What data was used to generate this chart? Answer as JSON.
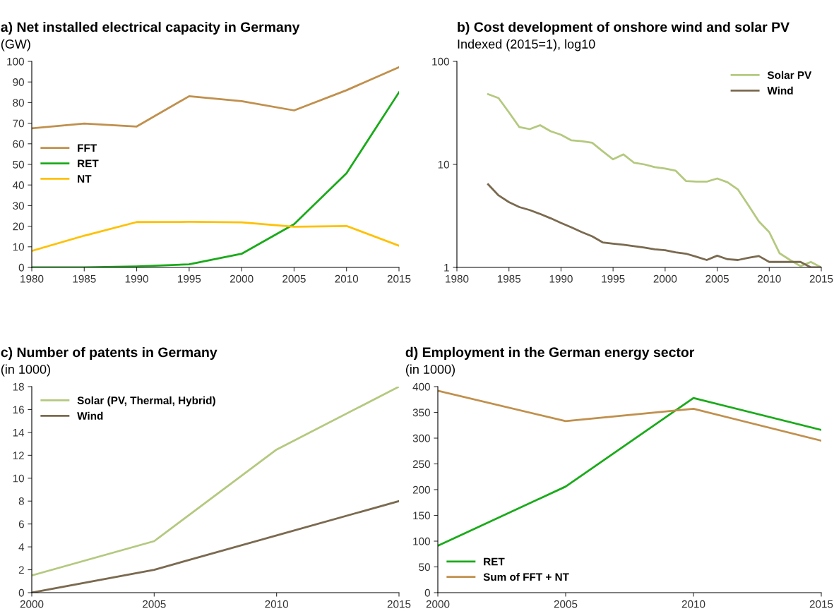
{
  "chart_data": [
    {
      "type": "line",
      "title": "a) Net installed electrical capacity in Germany",
      "subtitle": "(GW)",
      "x": [
        1980,
        1985,
        1990,
        1995,
        2000,
        2005,
        2010,
        2015
      ],
      "xlim": [
        1980,
        2015
      ],
      "xticks": [
        1980,
        1985,
        1990,
        1995,
        2000,
        2005,
        2010,
        2015
      ],
      "ylim": [
        0,
        100
      ],
      "yticks": [
        0,
        10,
        20,
        30,
        40,
        50,
        60,
        70,
        80,
        90,
        100
      ],
      "legend": "left",
      "series": [
        {
          "name": "FFT",
          "color": "#c0904d",
          "values": [
            67.5,
            69.8,
            68.4,
            83.1,
            80.7,
            76.2,
            86,
            97.2
          ]
        },
        {
          "name": "RET",
          "color": "#1aaa1a",
          "values": [
            0,
            0,
            0.5,
            1.5,
            6.6,
            21,
            45.7,
            85
          ]
        },
        {
          "name": "NT",
          "color": "#ffc000",
          "values": [
            8,
            15.4,
            22,
            22.1,
            21.9,
            19.7,
            20.1,
            10.5
          ]
        }
      ]
    },
    {
      "type": "line",
      "title": "b) Cost development of onshore wind and solar PV",
      "subtitle": "Indexed (2015=1), log10",
      "log": "y",
      "x": [
        1983,
        1984,
        1985,
        1986,
        1987,
        1988,
        1989,
        1990,
        1991,
        1992,
        1993,
        1994,
        1995,
        1996,
        1997,
        1998,
        1999,
        2000,
        2001,
        2002,
        2003,
        2004,
        2005,
        2006,
        2007,
        2008,
        2009,
        2010,
        2011,
        2012,
        2013,
        2014,
        2015
      ],
      "xlim": [
        1980,
        2015
      ],
      "xticks": [
        1980,
        1985,
        1990,
        1995,
        2000,
        2005,
        2010,
        2015
      ],
      "ylim": [
        1,
        100
      ],
      "yticks": [
        1,
        10,
        100
      ],
      "legend": "top right",
      "series": [
        {
          "name": "Solar PV",
          "color": "#b4c97f",
          "values": [
            48,
            44,
            32,
            23,
            22,
            24,
            21,
            19.4,
            17.1,
            16.8,
            16.2,
            13.4,
            11.2,
            12.5,
            10.4,
            10,
            9.4,
            9.1,
            8.7,
            6.9,
            6.8,
            6.8,
            7.3,
            6.7,
            5.7,
            4.0,
            2.8,
            2.2,
            1.37,
            1.18,
            1.03,
            1.13,
            1.0
          ]
        },
        {
          "name": "Wind",
          "color": "#7a6a4f",
          "values": [
            6.4,
            5.0,
            4.3,
            3.85,
            3.6,
            3.3,
            3.0,
            2.7,
            2.45,
            2.2,
            2.0,
            1.75,
            1.7,
            1.66,
            1.61,
            1.56,
            1.5,
            1.47,
            1.4,
            1.36,
            1.27,
            1.18,
            1.3,
            1.2,
            1.18,
            1.24,
            1.29,
            1.13,
            1.13,
            1.13,
            1.13,
            1.0,
            1.0
          ]
        }
      ]
    },
    {
      "type": "line",
      "title": "c) Number of patents in Germany",
      "subtitle": "(in 1000)",
      "x": [
        2000,
        2005,
        2010,
        2015
      ],
      "xlim": [
        2000,
        2015
      ],
      "xticks": [
        2000,
        2005,
        2010,
        2015
      ],
      "ylim": [
        0,
        18
      ],
      "yticks": [
        0,
        2,
        4,
        6,
        8,
        10,
        12,
        14,
        16,
        18
      ],
      "legend": "top left",
      "series": [
        {
          "name": "Solar (PV, Thermal, Hybrid)",
          "color": "#b4c97f",
          "values": [
            1.5,
            4.5,
            12.5,
            18
          ]
        },
        {
          "name": "Wind",
          "color": "#7a6a4f",
          "values": [
            0,
            2,
            5,
            8
          ]
        }
      ]
    },
    {
      "type": "line",
      "title": "d) Employment in the German energy sector",
      "subtitle": "(in 1000)",
      "x": [
        2000,
        2005,
        2010,
        2015
      ],
      "xlim": [
        2000,
        2015
      ],
      "xticks": [
        2000,
        2005,
        2010,
        2015
      ],
      "ylim": [
        0,
        400
      ],
      "yticks": [
        0,
        50,
        100,
        150,
        200,
        250,
        300,
        350,
        400
      ],
      "legend": "bottom left",
      "series": [
        {
          "name": "RET",
          "color": "#1aaa1a",
          "values": [
            91,
            206,
            378,
            316
          ]
        },
        {
          "name": "Sum of FFT + NT",
          "color": "#c0904d",
          "values": [
            392,
            333,
            357,
            295
          ]
        }
      ]
    }
  ]
}
